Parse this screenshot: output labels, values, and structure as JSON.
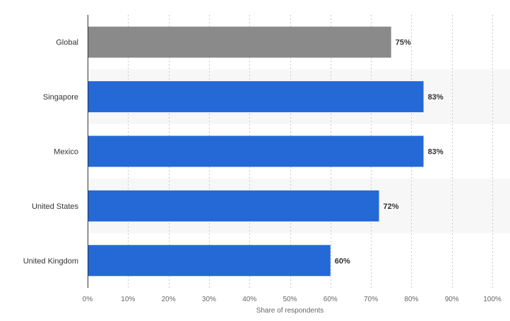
{
  "chart_data": {
    "type": "bar",
    "orientation": "horizontal",
    "categories": [
      "Global",
      "Singapore",
      "Mexico",
      "United States",
      "United Kingdom"
    ],
    "values": [
      75,
      83,
      83,
      72,
      60
    ],
    "value_labels": [
      "75%",
      "83%",
      "83%",
      "72%",
      "60%"
    ],
    "bar_colors": [
      "#8a8a8a",
      "#2469d6",
      "#2469d6",
      "#2469d6",
      "#2469d6"
    ],
    "xlabel": "Share of respondents",
    "ylabel": "",
    "xlim": [
      0,
      100
    ],
    "x_ticks": [
      0,
      10,
      20,
      30,
      40,
      50,
      60,
      70,
      80,
      90,
      100
    ],
    "x_tick_labels": [
      "0%",
      "10%",
      "20%",
      "30%",
      "40%",
      "50%",
      "60%",
      "70%",
      "80%",
      "90%",
      "100%"
    ],
    "grid": true,
    "legend": "none"
  }
}
